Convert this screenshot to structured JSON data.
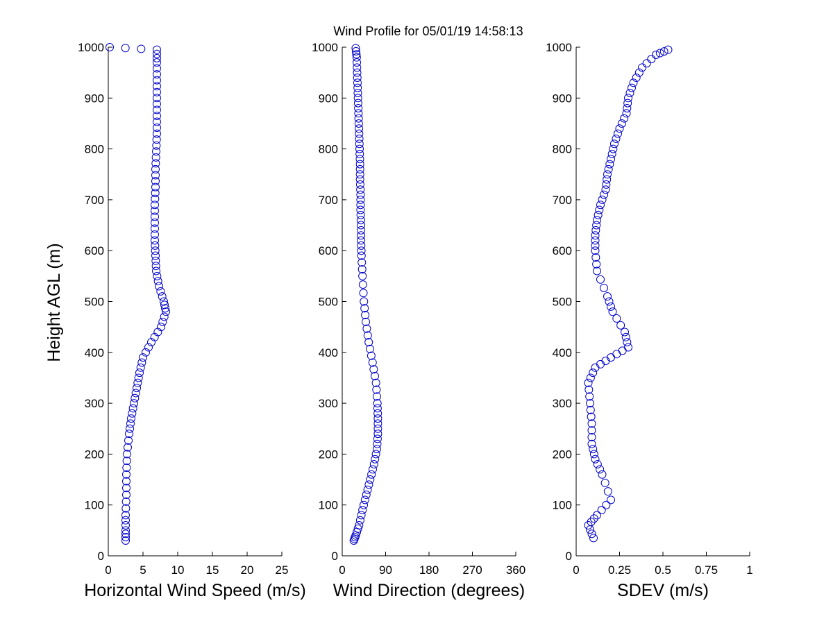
{
  "figure": {
    "title": "Wind Profile for  05/01/19 14:58:13",
    "ylabel": "Height AGL (m)",
    "marker_color": "#0000cc",
    "background": "#ffffff"
  },
  "chart_data": [
    {
      "type": "scatter",
      "marker": "circle",
      "xlabel": "Horizontal Wind Speed (m/s)",
      "ylabel": "Height AGL (m)",
      "xlim": [
        0,
        25
      ],
      "ylim": [
        0,
        1000
      ],
      "xticks": [
        "0",
        "5",
        "10",
        "15",
        "20",
        "25"
      ],
      "yticks": [
        "0",
        "100",
        "200",
        "300",
        "400",
        "500",
        "600",
        "700",
        "800",
        "900",
        "1000"
      ],
      "grid": false,
      "x": [
        0.2,
        7,
        7,
        7,
        7,
        7,
        7,
        6.9,
        6.8,
        6.8,
        6.7,
        6.7,
        6.7,
        6.8,
        6.9,
        7.3,
        8,
        8.3,
        7.6,
        6.2,
        5,
        4.5,
        4.1,
        3.7,
        3.3,
        3,
        2.7,
        2.6,
        2.6,
        2.5,
        2.5,
        2.5
      ],
      "y": [
        1000,
        995,
        970,
        935,
        900,
        865,
        830,
        795,
        760,
        725,
        690,
        655,
        620,
        590,
        560,
        530,
        500,
        480,
        450,
        420,
        390,
        360,
        330,
        300,
        270,
        240,
        200,
        160,
        120,
        80,
        50,
        30
      ]
    },
    {
      "type": "scatter",
      "marker": "circle",
      "xlabel": "Wind Direction (degrees)",
      "xlim": [
        0,
        360
      ],
      "ylim": [
        0,
        1000
      ],
      "xticks": [
        "0",
        "90",
        "180",
        "270",
        "360"
      ],
      "yticks": [
        "0",
        "100",
        "200",
        "300",
        "400",
        "500",
        "600",
        "700",
        "800",
        "900",
        "1000"
      ],
      "grid": false,
      "x": [
        28,
        30,
        31,
        32,
        33,
        34,
        35,
        36,
        37,
        37,
        38,
        38,
        39,
        39,
        40,
        42,
        45,
        49,
        55,
        63,
        70,
        73,
        74,
        74,
        72,
        66,
        58,
        50,
        42,
        35,
        28,
        24
      ],
      "y": [
        998,
        980,
        950,
        920,
        890,
        860,
        830,
        800,
        770,
        740,
        710,
        680,
        650,
        620,
        590,
        550,
        500,
        460,
        420,
        380,
        340,
        300,
        270,
        240,
        210,
        180,
        150,
        120,
        90,
        60,
        40,
        30
      ]
    },
    {
      "type": "scatter",
      "marker": "circle",
      "xlabel": "SDEV  (m/s)",
      "xlim": [
        0,
        1
      ],
      "ylim": [
        0,
        1000
      ],
      "xticks": [
        "0",
        "0.25",
        "0.5",
        "0.75",
        "1"
      ],
      "yticks": [
        "0",
        "100",
        "200",
        "300",
        "400",
        "500",
        "600",
        "700",
        "800",
        "900",
        "1000"
      ],
      "grid": false,
      "x": [
        0.53,
        0.46,
        0.38,
        0.33,
        0.3,
        0.29,
        0.25,
        0.22,
        0.2,
        0.18,
        0.17,
        0.14,
        0.12,
        0.11,
        0.11,
        0.12,
        0.18,
        0.21,
        0.28,
        0.3,
        0.2,
        0.11,
        0.07,
        0.08,
        0.09,
        0.09,
        0.11,
        0.15,
        0.2,
        0.12,
        0.07,
        0.1
      ],
      "y": [
        995,
        985,
        960,
        930,
        900,
        870,
        840,
        810,
        780,
        750,
        720,
        690,
        660,
        630,
        600,
        560,
        510,
        480,
        440,
        410,
        390,
        370,
        340,
        300,
        260,
        220,
        190,
        160,
        110,
        80,
        60,
        35
      ]
    }
  ]
}
